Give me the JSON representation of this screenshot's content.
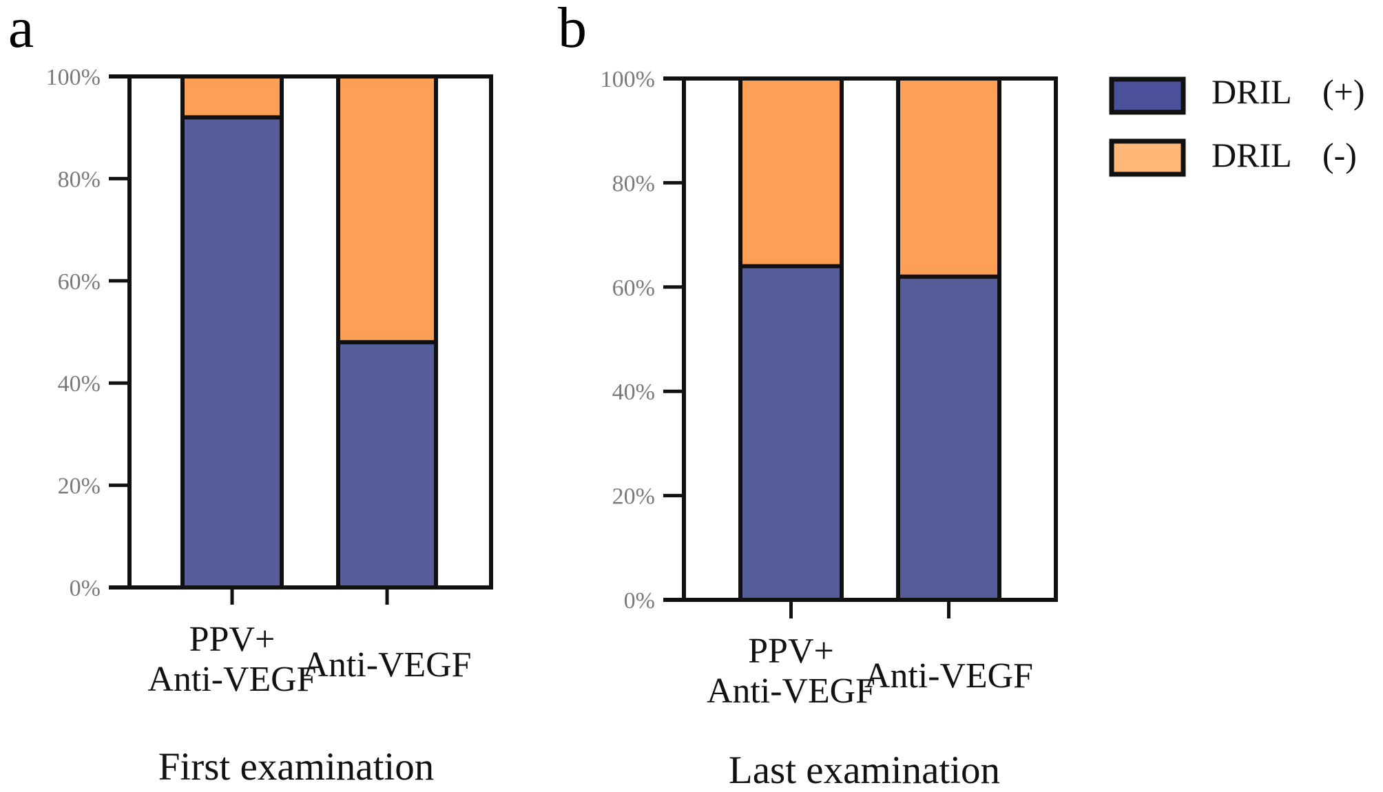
{
  "colors": {
    "dril_pos": "#565d9b",
    "dril_neg": "#fd9f55",
    "legend_pos": "#4b509a",
    "legend_neg": "#ffb877",
    "stroke": "#111111"
  },
  "legend": {
    "items": [
      {
        "label": "DRIL",
        "sign": "(+)",
        "series": "dril_pos"
      },
      {
        "label": "DRIL",
        "sign": "(-)",
        "series": "dril_neg"
      }
    ]
  },
  "chart_data": [
    {
      "type": "bar",
      "stacked": true,
      "panel_letter": "a",
      "title": "First examination",
      "xlabel": "First examination",
      "ylabel": "",
      "categories": [
        [
          "PPV+",
          "Anti-VEGF"
        ],
        [
          "Anti-VEGF"
        ]
      ],
      "yticks": [
        "0%",
        "20%",
        "40%",
        "60%",
        "80%",
        "100%"
      ],
      "ylim": [
        0,
        100
      ],
      "series": [
        {
          "name": "DRIL (+)",
          "values": [
            92,
            48
          ]
        },
        {
          "name": "DRIL (-)",
          "values": [
            8,
            52
          ]
        }
      ],
      "legend": "right"
    },
    {
      "type": "bar",
      "stacked": true,
      "panel_letter": "b",
      "title": "Last examination",
      "xlabel": "Last examination",
      "ylabel": "",
      "categories": [
        [
          "PPV+",
          "Anti-VEGF"
        ],
        [
          "Anti-VEGF"
        ]
      ],
      "yticks": [
        "0%",
        "20%",
        "40%",
        "60%",
        "80%",
        "100%"
      ],
      "ylim": [
        0,
        100
      ],
      "series": [
        {
          "name": "DRIL (+)",
          "values": [
            64,
            62
          ]
        },
        {
          "name": "DRIL (-)",
          "values": [
            36,
            38
          ]
        }
      ],
      "legend": "right"
    }
  ]
}
